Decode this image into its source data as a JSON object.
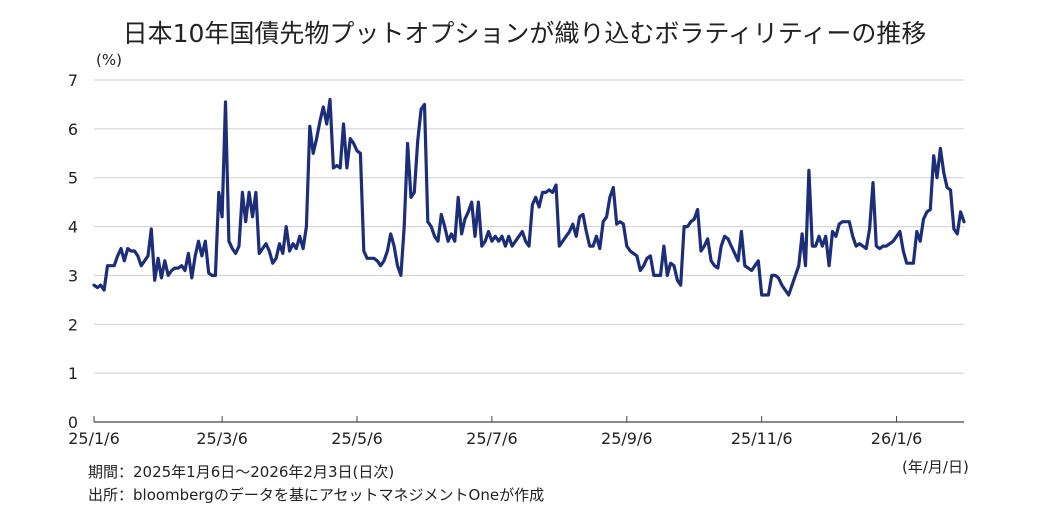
{
  "chart_data": {
    "type": "line",
    "title": "日本10年国債先物プットオプションが織り込むボラティリティーの推移",
    "ylabel": "(%)",
    "xlabel": "(年/月/日)",
    "ylim": [
      0,
      7
    ],
    "yticks": [
      "0",
      "1",
      "2",
      "3",
      "4",
      "5",
      "6",
      "7"
    ],
    "xticks": [
      {
        "label": "25/1/6",
        "index": 0
      },
      {
        "label": "25/3/6",
        "index": 38
      },
      {
        "label": "25/5/6",
        "index": 78
      },
      {
        "label": "25/7/6",
        "index": 118
      },
      {
        "label": "25/9/6",
        "index": 158
      },
      {
        "label": "25/11/6",
        "index": 198
      },
      {
        "label": "26/1/6",
        "index": 238
      }
    ],
    "x_count": 258,
    "series": [
      {
        "name": "volatility",
        "color": "#1c2d7a",
        "points": [
          [
            0,
            2.8
          ],
          [
            1,
            2.75
          ],
          [
            2,
            2.8
          ],
          [
            3,
            2.7
          ],
          [
            4,
            3.2
          ],
          [
            5,
            3.2
          ],
          [
            6,
            3.2
          ],
          [
            7,
            3.4
          ],
          [
            8,
            3.55
          ],
          [
            9,
            3.3
          ],
          [
            10,
            3.55
          ],
          [
            11,
            3.5
          ],
          [
            12,
            3.5
          ],
          [
            13,
            3.4
          ],
          [
            14,
            3.2
          ],
          [
            15,
            3.3
          ],
          [
            16,
            3.4
          ],
          [
            17,
            3.95
          ],
          [
            18,
            2.9
          ],
          [
            19,
            3.35
          ],
          [
            20,
            2.95
          ],
          [
            21,
            3.3
          ],
          [
            22,
            3.0
          ],
          [
            23,
            3.1
          ],
          [
            24,
            3.15
          ],
          [
            25,
            3.15
          ],
          [
            26,
            3.2
          ],
          [
            27,
            3.1
          ],
          [
            28,
            3.45
          ],
          [
            29,
            2.95
          ],
          [
            30,
            3.4
          ],
          [
            31,
            3.7
          ],
          [
            32,
            3.4
          ],
          [
            33,
            3.7
          ],
          [
            34,
            3.05
          ],
          [
            35,
            3.0
          ],
          [
            36,
            3.0
          ],
          [
            37,
            4.7
          ],
          [
            38,
            4.2
          ],
          [
            39,
            6.55
          ],
          [
            40,
            3.7
          ],
          [
            41,
            3.55
          ],
          [
            42,
            3.45
          ],
          [
            43,
            3.6
          ],
          [
            44,
            4.7
          ],
          [
            45,
            4.1
          ],
          [
            46,
            4.7
          ],
          [
            47,
            4.2
          ],
          [
            48,
            4.7
          ],
          [
            49,
            3.45
          ],
          [
            50,
            3.55
          ],
          [
            51,
            3.65
          ],
          [
            52,
            3.5
          ],
          [
            53,
            3.25
          ],
          [
            54,
            3.35
          ],
          [
            55,
            3.65
          ],
          [
            56,
            3.45
          ],
          [
            57,
            4.0
          ],
          [
            58,
            3.5
          ],
          [
            59,
            3.65
          ],
          [
            60,
            3.55
          ],
          [
            61,
            3.8
          ],
          [
            62,
            3.55
          ],
          [
            63,
            4.0
          ],
          [
            64,
            6.05
          ],
          [
            65,
            5.5
          ],
          [
            66,
            5.8
          ],
          [
            67,
            6.15
          ],
          [
            68,
            6.45
          ],
          [
            69,
            6.1
          ],
          [
            70,
            6.6
          ],
          [
            71,
            5.2
          ],
          [
            72,
            5.25
          ],
          [
            73,
            5.2
          ],
          [
            74,
            6.1
          ],
          [
            75,
            5.2
          ],
          [
            76,
            5.8
          ],
          [
            77,
            5.7
          ],
          [
            78,
            5.55
          ],
          [
            79,
            5.5
          ],
          [
            80,
            3.5
          ],
          [
            81,
            3.35
          ],
          [
            82,
            3.35
          ],
          [
            83,
            3.35
          ],
          [
            84,
            3.3
          ],
          [
            85,
            3.2
          ],
          [
            86,
            3.3
          ],
          [
            87,
            3.5
          ],
          [
            88,
            3.85
          ],
          [
            89,
            3.6
          ],
          [
            90,
            3.2
          ],
          [
            91,
            3.0
          ],
          [
            92,
            4.0
          ],
          [
            93,
            5.7
          ],
          [
            94,
            4.6
          ],
          [
            95,
            4.7
          ],
          [
            96,
            5.75
          ],
          [
            97,
            6.4
          ],
          [
            98,
            6.5
          ],
          [
            99,
            4.1
          ],
          [
            100,
            4.0
          ],
          [
            101,
            3.8
          ],
          [
            102,
            3.7
          ],
          [
            103,
            4.25
          ],
          [
            104,
            4.0
          ],
          [
            105,
            3.7
          ],
          [
            106,
            3.85
          ],
          [
            107,
            3.7
          ],
          [
            108,
            4.6
          ],
          [
            109,
            3.85
          ],
          [
            110,
            4.15
          ],
          [
            111,
            4.3
          ],
          [
            112,
            4.5
          ],
          [
            113,
            3.8
          ],
          [
            114,
            4.5
          ],
          [
            115,
            3.6
          ],
          [
            116,
            3.7
          ],
          [
            117,
            3.9
          ],
          [
            118,
            3.7
          ],
          [
            119,
            3.8
          ],
          [
            120,
            3.7
          ],
          [
            121,
            3.8
          ],
          [
            122,
            3.6
          ],
          [
            123,
            3.8
          ],
          [
            124,
            3.6
          ],
          [
            125,
            3.7
          ],
          [
            126,
            3.8
          ],
          [
            127,
            3.9
          ],
          [
            128,
            3.7
          ],
          [
            129,
            3.6
          ],
          [
            130,
            4.45
          ],
          [
            131,
            4.6
          ],
          [
            132,
            4.4
          ],
          [
            133,
            4.7
          ],
          [
            134,
            4.7
          ],
          [
            135,
            4.75
          ],
          [
            136,
            4.7
          ],
          [
            137,
            4.85
          ],
          [
            138,
            3.6
          ],
          [
            139,
            3.7
          ],
          [
            140,
            3.8
          ],
          [
            141,
            3.9
          ],
          [
            142,
            4.05
          ],
          [
            143,
            3.8
          ],
          [
            144,
            4.2
          ],
          [
            145,
            4.25
          ],
          [
            146,
            3.9
          ],
          [
            147,
            3.6
          ],
          [
            148,
            3.6
          ],
          [
            149,
            3.8
          ],
          [
            150,
            3.55
          ],
          [
            151,
            4.1
          ],
          [
            152,
            4.2
          ],
          [
            153,
            4.6
          ],
          [
            154,
            4.8
          ],
          [
            155,
            4.05
          ],
          [
            156,
            4.1
          ],
          [
            157,
            4.05
          ],
          [
            158,
            3.6
          ],
          [
            159,
            3.5
          ],
          [
            160,
            3.45
          ],
          [
            161,
            3.4
          ],
          [
            162,
            3.1
          ],
          [
            163,
            3.2
          ],
          [
            164,
            3.35
          ],
          [
            165,
            3.4
          ],
          [
            166,
            3.0
          ],
          [
            167,
            3.0
          ],
          [
            168,
            3.0
          ],
          [
            169,
            3.6
          ],
          [
            170,
            3.0
          ],
          [
            171,
            3.25
          ],
          [
            172,
            3.2
          ],
          [
            173,
            2.9
          ],
          [
            174,
            2.8
          ],
          [
            175,
            4.0
          ],
          [
            176,
            4.0
          ],
          [
            177,
            4.1
          ],
          [
            178,
            4.15
          ],
          [
            179,
            4.35
          ],
          [
            180,
            3.5
          ],
          [
            181,
            3.6
          ],
          [
            182,
            3.75
          ],
          [
            183,
            3.3
          ],
          [
            184,
            3.2
          ],
          [
            185,
            3.15
          ],
          [
            186,
            3.6
          ],
          [
            187,
            3.8
          ],
          [
            188,
            3.75
          ],
          [
            189,
            3.6
          ],
          [
            190,
            3.45
          ],
          [
            191,
            3.3
          ],
          [
            192,
            3.9
          ],
          [
            193,
            3.2
          ],
          [
            194,
            3.15
          ],
          [
            195,
            3.1
          ],
          [
            196,
            3.2
          ],
          [
            197,
            3.3
          ],
          [
            198,
            2.6
          ],
          [
            199,
            2.6
          ],
          [
            200,
            2.6
          ],
          [
            201,
            3.0
          ],
          [
            202,
            3.0
          ],
          [
            203,
            2.95
          ],
          [
            204,
            2.8
          ],
          [
            205,
            2.7
          ],
          [
            206,
            2.6
          ],
          [
            207,
            2.8
          ],
          [
            208,
            3.0
          ],
          [
            209,
            3.2
          ],
          [
            210,
            3.85
          ],
          [
            211,
            3.2
          ],
          [
            212,
            5.15
          ],
          [
            213,
            3.6
          ],
          [
            214,
            3.6
          ],
          [
            215,
            3.8
          ],
          [
            216,
            3.6
          ],
          [
            217,
            3.8
          ],
          [
            218,
            3.2
          ],
          [
            219,
            3.9
          ],
          [
            220,
            3.8
          ],
          [
            221,
            4.05
          ],
          [
            222,
            4.1
          ],
          [
            223,
            4.1
          ],
          [
            224,
            4.1
          ],
          [
            225,
            3.8
          ],
          [
            226,
            3.6
          ],
          [
            227,
            3.65
          ],
          [
            228,
            3.6
          ],
          [
            229,
            3.55
          ],
          [
            230,
            3.95
          ],
          [
            231,
            4.9
          ],
          [
            232,
            3.6
          ],
          [
            233,
            3.55
          ],
          [
            234,
            3.6
          ],
          [
            235,
            3.6
          ],
          [
            236,
            3.65
          ],
          [
            237,
            3.7
          ],
          [
            238,
            3.8
          ],
          [
            239,
            3.9
          ],
          [
            240,
            3.5
          ],
          [
            241,
            3.25
          ],
          [
            242,
            3.25
          ],
          [
            243,
            3.25
          ],
          [
            244,
            3.9
          ],
          [
            245,
            3.7
          ],
          [
            246,
            4.15
          ],
          [
            247,
            4.3
          ],
          [
            248,
            4.35
          ],
          [
            249,
            5.45
          ],
          [
            250,
            5.0
          ],
          [
            251,
            5.6
          ],
          [
            252,
            5.1
          ],
          [
            253,
            4.8
          ],
          [
            254,
            4.75
          ],
          [
            255,
            3.95
          ],
          [
            256,
            3.85
          ],
          [
            257,
            4.3
          ],
          [
            258,
            4.1
          ]
        ]
      }
    ]
  },
  "notes": {
    "period": "期間：2025年1月6日～2026年2月3日(日次)",
    "source": "出所：bloombergのデータを基にアセットマネジメントOneが作成"
  }
}
